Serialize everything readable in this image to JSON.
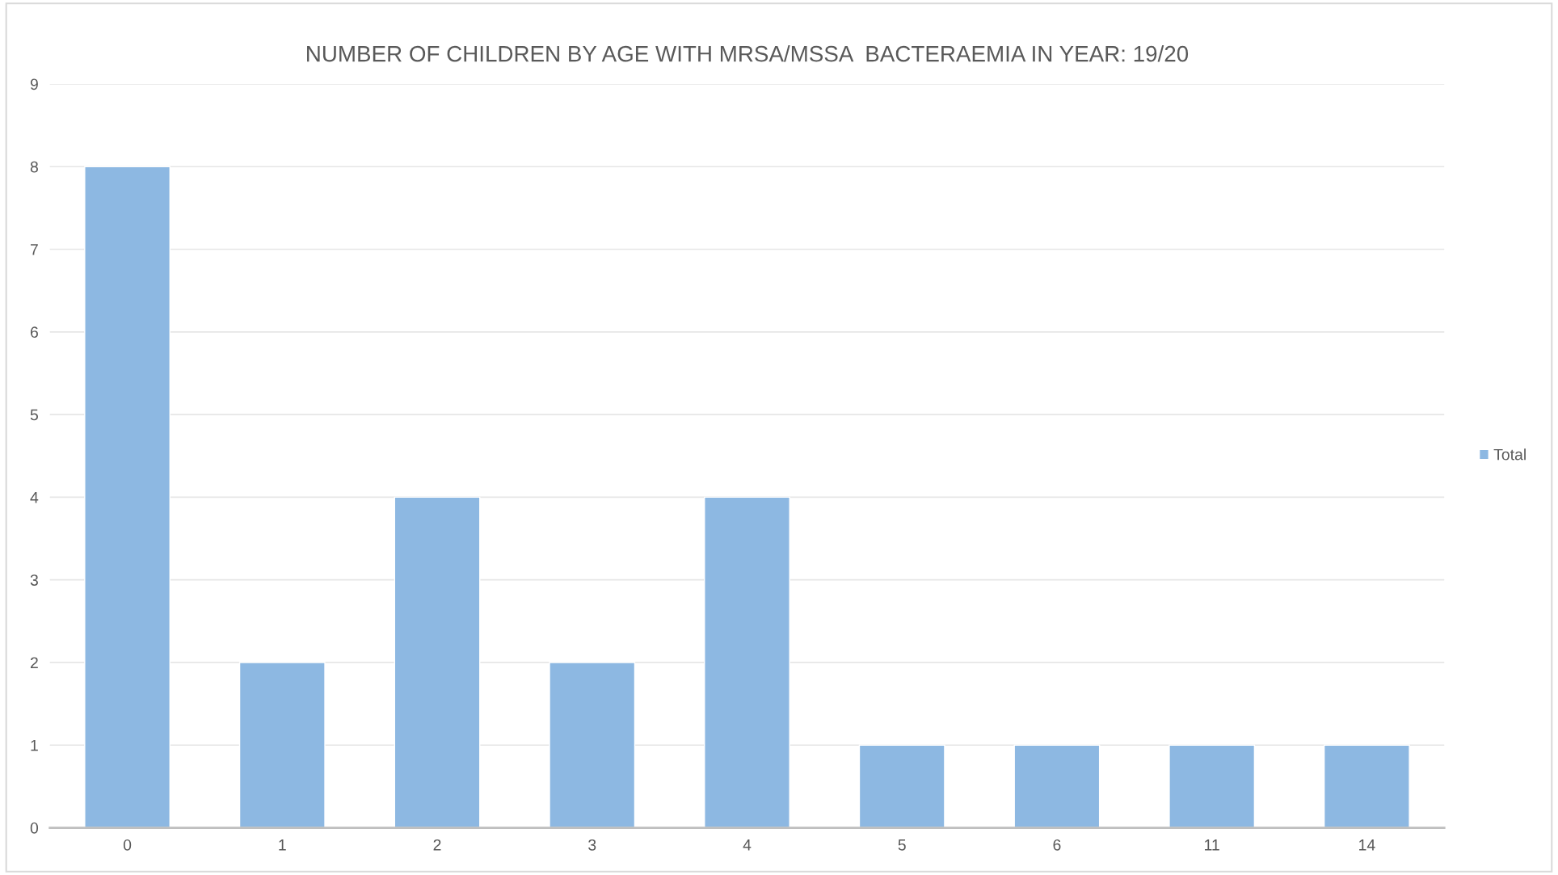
{
  "chart_data": {
    "type": "bar",
    "title": "NUMBER OF CHILDREN BY AGE WITH MRSA/MSSA  BACTERAEMIA IN YEAR: 19/20",
    "categories": [
      "0",
      "1",
      "2",
      "3",
      "4",
      "5",
      "6",
      "11",
      "14"
    ],
    "series": [
      {
        "name": "Total",
        "color": "#8db8e2",
        "values": [
          8,
          2,
          4,
          2,
          4,
          1,
          1,
          1,
          1
        ]
      }
    ],
    "ylim": [
      0,
      9
    ],
    "yticks": [
      0,
      1,
      2,
      3,
      4,
      5,
      6,
      7,
      8,
      9
    ],
    "grid": "y",
    "legend": "right"
  }
}
